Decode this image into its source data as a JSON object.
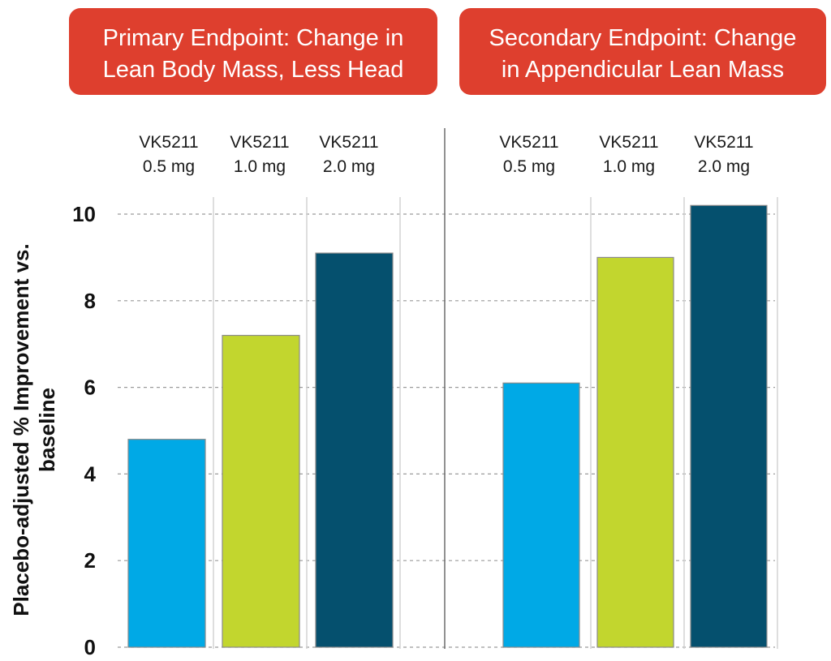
{
  "chart_data": {
    "type": "bar",
    "ylabel": [
      "Placebo-adjusted % Improvement vs.",
      "baseline"
    ],
    "ylim": [
      0,
      10
    ],
    "yticks": [
      "0",
      "2",
      "4",
      "6",
      "8",
      "10"
    ],
    "grid": "horizontal dashed",
    "colors": {
      "0.5mg": "#00a9e6",
      "1.0mg": "#c2d62e",
      "2.0mg": "#05506e",
      "header": "#de3f2e"
    },
    "panels": [
      {
        "title": [
          "Primary Endpoint: Change in",
          "Lean Body Mass, Less Head"
        ],
        "categories": [
          [
            "VK5211",
            "0.5 mg"
          ],
          [
            "VK5211",
            "1.0 mg"
          ],
          [
            "VK5211",
            "2.0 mg"
          ]
        ],
        "values": [
          4.8,
          7.2,
          9.1
        ]
      },
      {
        "title": [
          "Secondary Endpoint: Change",
          "in Appendicular Lean Mass"
        ],
        "categories": [
          [
            "VK5211",
            "0.5 mg"
          ],
          [
            "VK5211",
            "1.0 mg"
          ],
          [
            "VK5211",
            "2.0 mg"
          ]
        ],
        "values": [
          6.1,
          9.0,
          10.2
        ]
      }
    ]
  }
}
